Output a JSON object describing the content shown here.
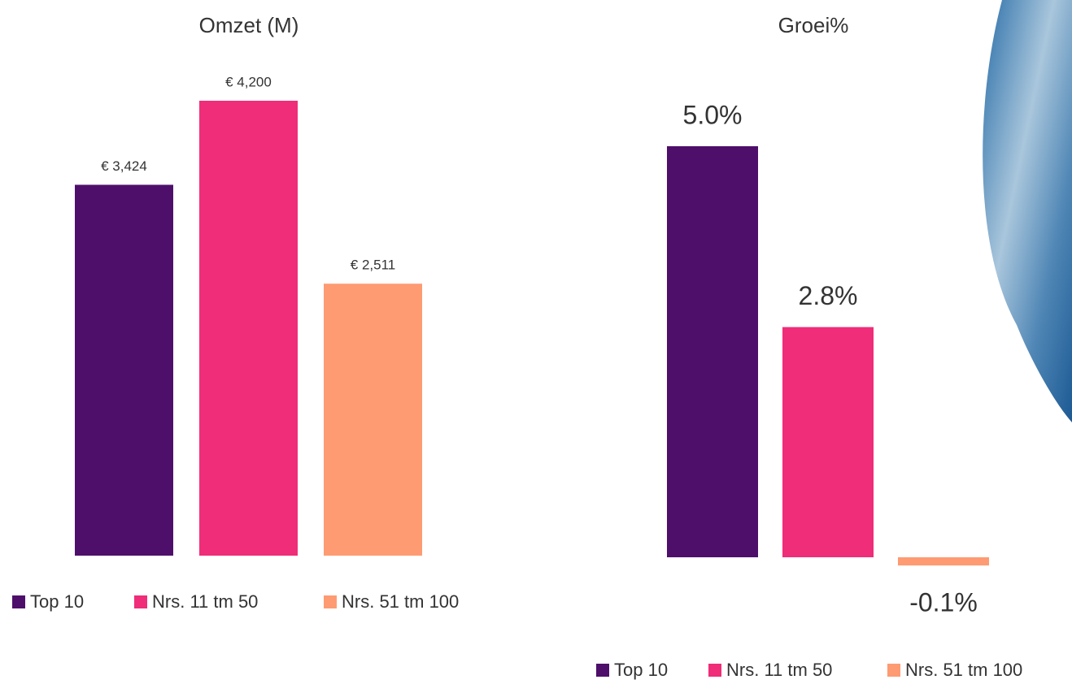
{
  "chart_data": [
    {
      "type": "bar",
      "title": "Omzet (M)",
      "series": [
        {
          "name": "Top 10",
          "color": "#4e0f6b",
          "values": [
            3424
          ],
          "value_labels": [
            "€ 3,424"
          ]
        },
        {
          "name": "Nrs. 11 tm 50",
          "color": "#ef2d78",
          "values": [
            4200
          ],
          "value_labels": [
            "€ 4,200"
          ]
        },
        {
          "name": "Nrs. 51 tm 100",
          "color": "#fe9b72",
          "values": [
            2511
          ],
          "value_labels": [
            "€ 2,511"
          ]
        }
      ]
    },
    {
      "type": "bar",
      "title": "Groei%",
      "series": [
        {
          "name": "Top 10",
          "color": "#4e0f6b",
          "values": [
            5.0
          ],
          "value_labels": [
            "5.0%"
          ]
        },
        {
          "name": "Nrs. 11 tm 50",
          "color": "#ef2d78",
          "values": [
            2.8
          ],
          "value_labels": [
            "2.8%"
          ]
        },
        {
          "name": "Nrs. 51 tm 100",
          "color": "#fe9b72",
          "values": [
            -0.1
          ],
          "value_labels": [
            "-0.1%"
          ]
        }
      ]
    }
  ]
}
